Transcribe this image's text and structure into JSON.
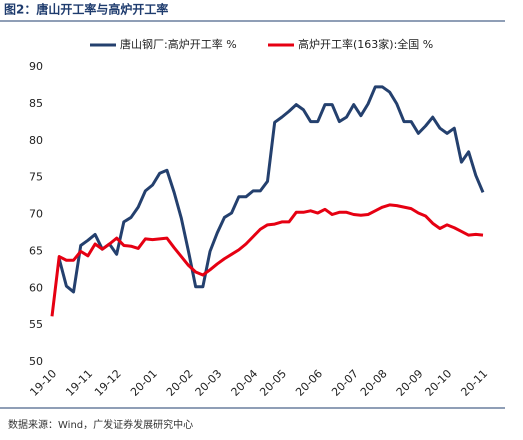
{
  "chart_data": {
    "type": "line",
    "title": "图2：唐山开工率与高炉开工率",
    "source": "数据来源：Wind，广发证券发展研究中心",
    "categories": [
      "19-10",
      null,
      null,
      null,
      null,
      "19-11",
      null,
      null,
      null,
      "19-12",
      null,
      null,
      null,
      null,
      "20-01",
      null,
      null,
      null,
      null,
      "20-02",
      null,
      null,
      null,
      "20-03",
      null,
      null,
      null,
      null,
      "20-04",
      null,
      null,
      null,
      "20-05",
      null,
      null,
      null,
      null,
      "20-06",
      null,
      null,
      null,
      null,
      "20-07",
      null,
      null,
      null,
      "20-08",
      null,
      null,
      null,
      null,
      "20-09",
      null,
      null,
      null,
      "20-10",
      null,
      null,
      null,
      null,
      "20-11"
    ],
    "series": [
      {
        "name": "唐山钢厂:高炉开工率 %",
        "color": "#24406e",
        "values": [
          null,
          64,
          60.3,
          59.5,
          65.8,
          66.5,
          67.3,
          65.3,
          66,
          64.6,
          69,
          69.6,
          71,
          73.2,
          74,
          75.6,
          76,
          73,
          69.5,
          65,
          60.2,
          60.2,
          65,
          67.5,
          69.6,
          70.2,
          72.4,
          72.4,
          73.2,
          73.2,
          74.5,
          82.5,
          83.2,
          84,
          84.9,
          84.2,
          82.6,
          82.6,
          84.9,
          84.9,
          82.6,
          83.2,
          84.9,
          83.4,
          85,
          87.3,
          87.3,
          86.6,
          85,
          82.6,
          82.6,
          81,
          82,
          83.2,
          81.7,
          81,
          81.7,
          77.1,
          78.5,
          75.3,
          73
        ]
      },
      {
        "name": "高炉开工率(163家):全国 %",
        "color": "#e60012",
        "values": [
          56.2,
          64.3,
          63.8,
          63.8,
          65,
          64.4,
          66,
          65.3,
          66,
          66.8,
          65.8,
          65.7,
          65.4,
          66.7,
          66.6,
          66.7,
          66.8,
          65.5,
          64.3,
          63.1,
          62.2,
          61.8,
          62.5,
          63.3,
          64,
          64.6,
          65.2,
          66,
          67,
          68,
          68.6,
          68.7,
          69,
          69,
          70.3,
          70.3,
          70.5,
          70.2,
          70.7,
          70,
          70.3,
          70.3,
          70,
          69.9,
          70,
          70.5,
          71,
          71.3,
          71.2,
          71,
          70.8,
          70.2,
          69.8,
          68.8,
          68.1,
          68.6,
          68.2,
          67.7,
          67.2,
          67.3,
          67.2
        ]
      }
    ],
    "ylim": [
      50,
      90
    ],
    "yticks": [
      50,
      55,
      60,
      65,
      70,
      75,
      80,
      85,
      90
    ],
    "grid": false
  }
}
